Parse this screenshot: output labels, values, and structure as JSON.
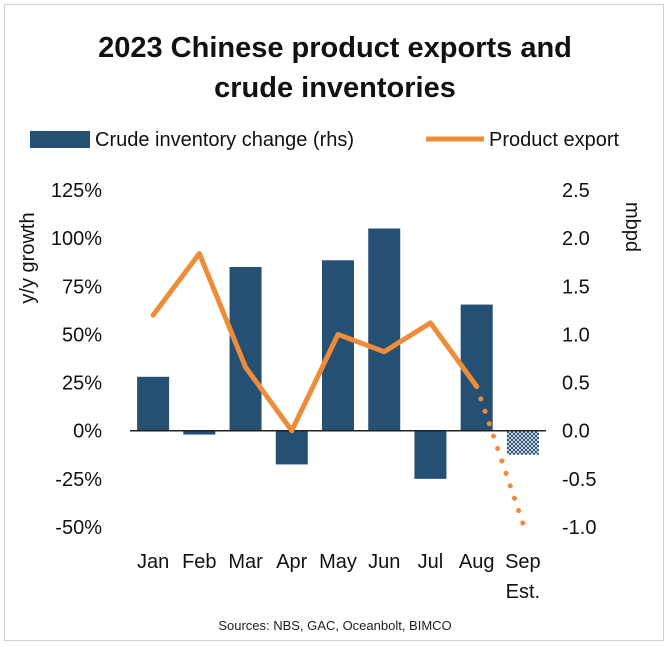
{
  "chart_data": {
    "type": "bar",
    "title_lines": [
      "2023 Chinese product exports and",
      "crude inventories"
    ],
    "categories": [
      "Jan",
      "Feb",
      "Mar",
      "Apr",
      "May",
      "Jun",
      "Jul",
      "Aug",
      "Sep"
    ],
    "category_sublabels": [
      "",
      "",
      "",
      "",
      "",
      "",
      "",
      "",
      "Est."
    ],
    "ylabel_left": "y/y growth",
    "ylabel_right": "mbpd",
    "ylim_left": [
      -0.5,
      1.25
    ],
    "ylim_right": [
      -1.0,
      2.5
    ],
    "left_ticks": [
      "125%",
      "100%",
      "75%",
      "50%",
      "25%",
      "0%",
      "-25%",
      "-50%"
    ],
    "right_ticks": [
      "2.5",
      "2.0",
      "1.5",
      "1.0",
      "0.5",
      "0.0",
      "-0.5",
      "-1.0"
    ],
    "legend_position": "top",
    "series": [
      {
        "name": "Crude inventory change (rhs)",
        "kind": "bar",
        "axis": "right",
        "color": "#254f73",
        "values": [
          0.56,
          -0.04,
          1.7,
          -0.35,
          1.77,
          2.1,
          -0.5,
          1.31,
          -0.25
        ],
        "estimated_last": true
      },
      {
        "name": "Product export",
        "kind": "line",
        "axis": "left",
        "color": "#ee8c3a",
        "values": [
          0.6,
          0.92,
          0.33,
          0.0,
          0.5,
          0.41,
          0.56,
          0.23,
          -0.48
        ],
        "estimated_last": true
      }
    ],
    "source": "Sources: NBS, GAC, Oceanbolt, BIMCO"
  }
}
